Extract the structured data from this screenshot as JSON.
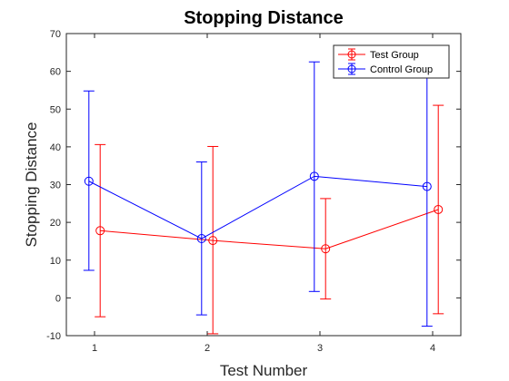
{
  "chart_data": {
    "type": "line",
    "title": "Stopping Distance",
    "xlabel": "Test Number",
    "ylabel": "Stopping Distance",
    "xlim": [
      0.75,
      4.25
    ],
    "ylim": [
      -10,
      70
    ],
    "xticks": [
      1,
      2,
      3,
      4
    ],
    "yticks": [
      -10,
      0,
      10,
      20,
      30,
      40,
      50,
      60,
      70
    ],
    "grid": false,
    "legend_position": "top-right",
    "series": [
      {
        "name": "Test Group",
        "color": "#ff0000",
        "marker": "circle",
        "x": [
          1.05,
          2.05,
          3.05,
          4.05
        ],
        "y": [
          17.8,
          15.2,
          13.0,
          23.4
        ],
        "err_low": [
          -5.0,
          -9.5,
          -0.3,
          -4.2
        ],
        "err_high": [
          40.6,
          40.1,
          26.3,
          51.0
        ]
      },
      {
        "name": "Control Group",
        "color": "#0000ff",
        "marker": "circle",
        "x": [
          0.95,
          1.95,
          2.95,
          3.95
        ],
        "y": [
          30.9,
          15.7,
          32.2,
          29.5
        ],
        "err_low": [
          7.3,
          -4.5,
          1.7,
          -7.5
        ],
        "err_high": [
          54.8,
          36.0,
          62.5,
          61.0
        ]
      }
    ]
  }
}
